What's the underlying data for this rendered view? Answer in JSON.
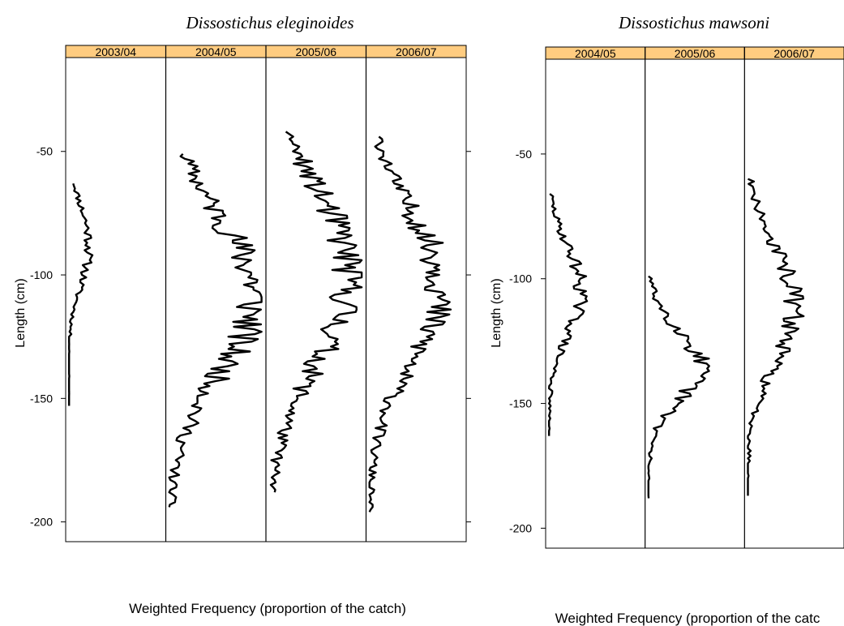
{
  "chart_data": [
    {
      "type": "line",
      "title": "Dissostichus eleginoides",
      "xlabel": "Weighted Frequency (proportion of the catch)",
      "ylabel": "Length (cm)",
      "ylim": [
        -208,
        -12
      ],
      "yticks": [
        -50,
        -100,
        -150,
        -200
      ],
      "strip_color": "#ffcc80",
      "panels": [
        {
          "name": "2003/04",
          "xmax": 1.0,
          "lmin": 63,
          "lmax": 153
        },
        {
          "name": "2004/05",
          "xmax": 1.0,
          "lmin": 51,
          "lmax": 194
        },
        {
          "name": "2005/06",
          "xmax": 1.0,
          "lmin": 42,
          "lmax": 188
        },
        {
          "name": "2006/07",
          "xmax": 1.0,
          "lmin": 44,
          "lmax": 196
        }
      ]
    },
    {
      "type": "line",
      "title": "Dissostichus mawsoni",
      "xlabel": "Weighted Frequency (proportion of the catc",
      "ylabel": "Length (cm)",
      "ylim": [
        -208,
        -12
      ],
      "yticks": [
        -50,
        -100,
        -150,
        -200
      ],
      "strip_color": "#ffcc80",
      "panels": [
        {
          "name": "2004/05",
          "xmax": 1.0,
          "lmin": 66,
          "lmax": 163
        },
        {
          "name": "2005/06",
          "xmax": 1.0,
          "lmin": 99,
          "lmax": 188
        },
        {
          "name": "2006/07",
          "xmax": 1.0,
          "lmin": 60,
          "lmax": 187
        }
      ]
    }
  ]
}
